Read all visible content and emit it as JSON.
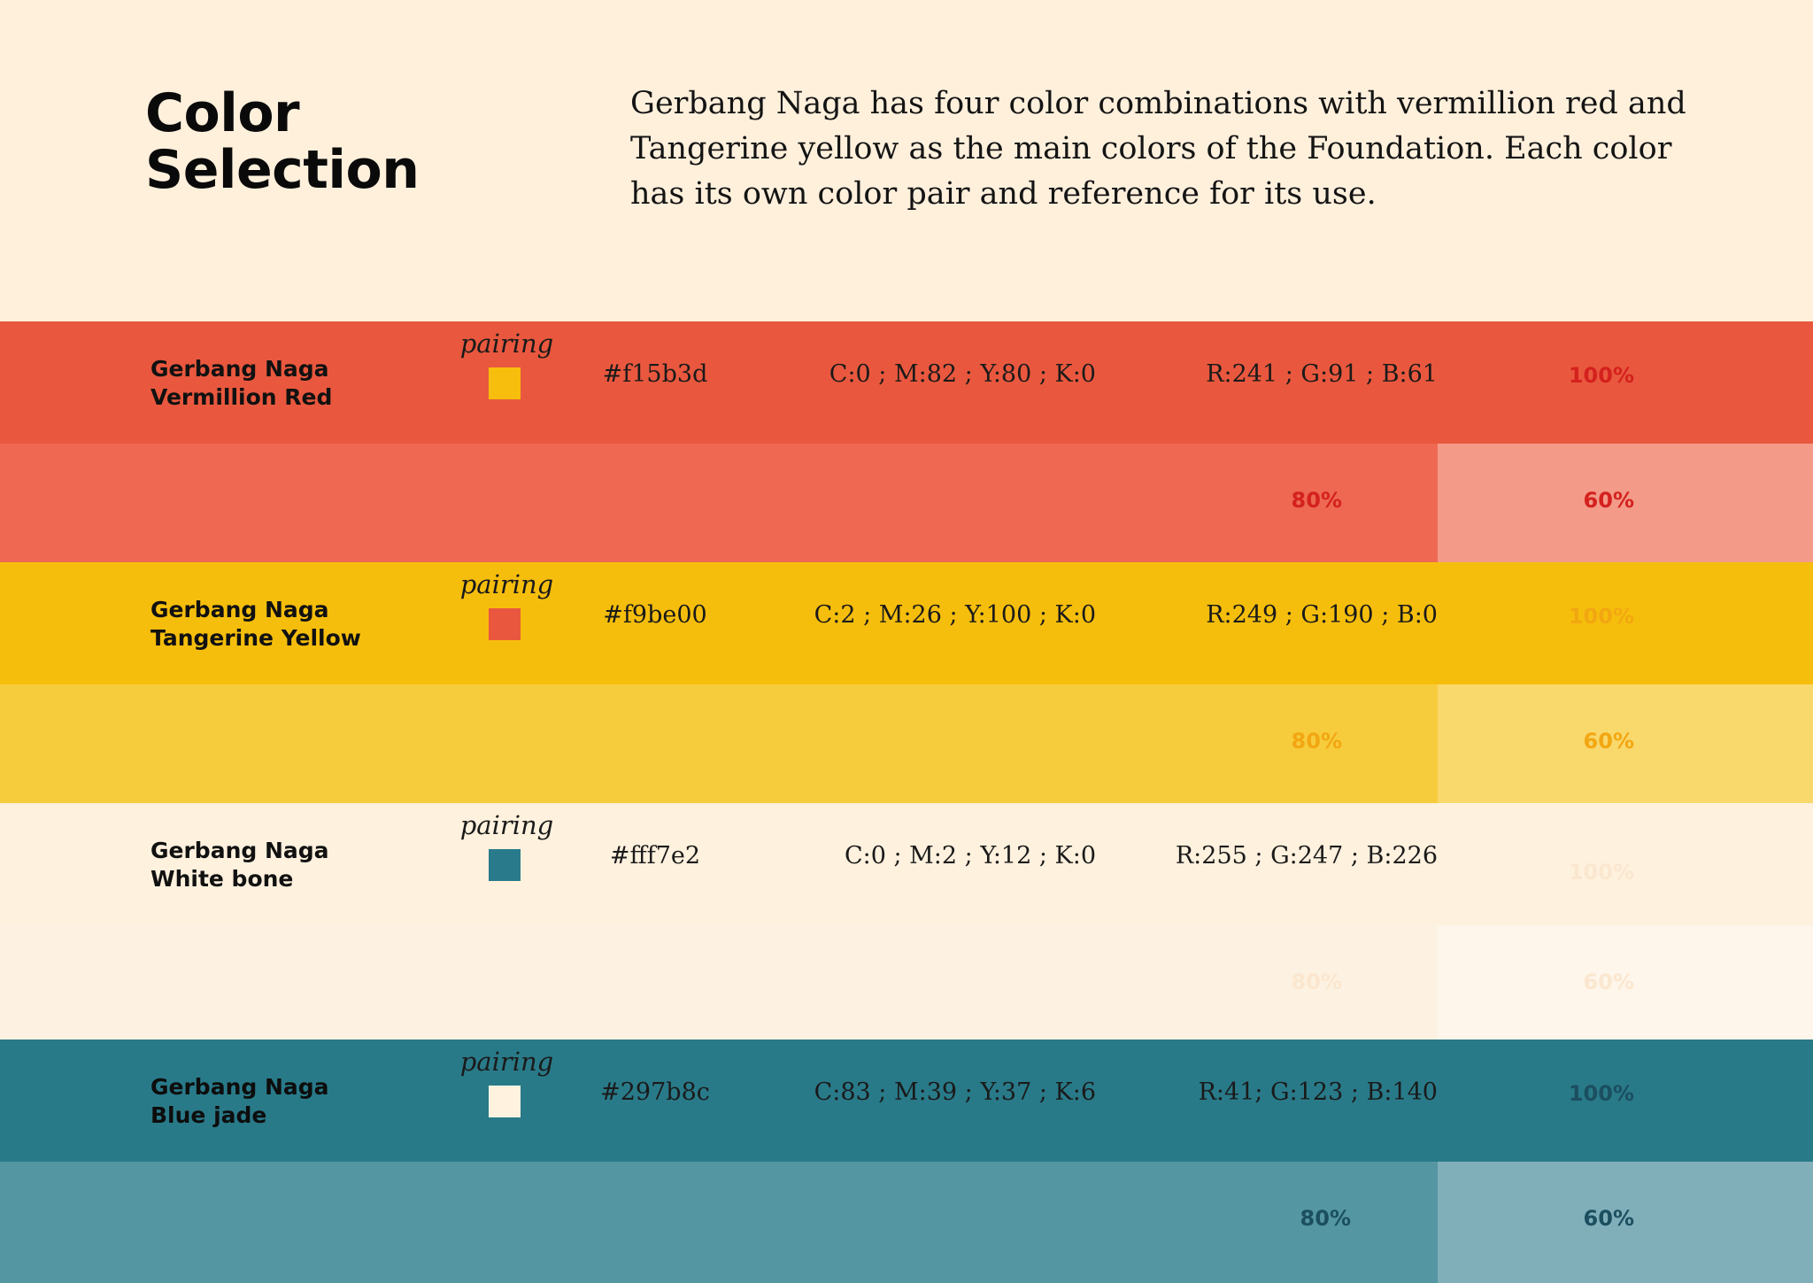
{
  "header": {
    "title_line1": "Color",
    "title_line2": "Selection",
    "description": "Gerbang Naga has four color combinations with vermillion red and Tangerine yellow as the main colors of the Foundation. Each color has its own color pair and reference for its use."
  },
  "colors": [
    {
      "name_line1": "Gerbang Naga",
      "name_line2": "Vermillion Red",
      "pairing_label": "pairing",
      "hex": "#f15b3d",
      "cmyk": "C:0 ; M:82 ; Y:80 ; K:0",
      "rgb": "R:241 ; G:91 ; B:61",
      "tint100": "100%",
      "tint80": "80%",
      "tint60": "60%",
      "base_color": "#e9583e",
      "color80": "#ee6852",
      "color60": "#f39a89",
      "pair_color": "#f7be0d",
      "label_color": "#d4211e",
      "name_color": "#111111"
    },
    {
      "name_line1": "Gerbang Naga",
      "name_line2": "Tangerine Yellow",
      "pairing_label": "pairing",
      "hex": "#f9be00",
      "cmyk": "C:2 ; M:26 ; Y:100 ; K:0",
      "rgb": "R:249 ; G:190 ; B:0",
      "tint100": "100%",
      "tint80": "80%",
      "tint60": "60%",
      "base_color": "#f6be0c",
      "color80": "#f7cc3c",
      "color60": "#f9d86c",
      "pair_color": "#e9583e",
      "label_color": "#f2a712",
      "name_color": "#111111"
    },
    {
      "name_line1": "Gerbang Naga",
      "name_line2": "White bone",
      "pairing_label": "pairing",
      "hex": "#fff7e2",
      "cmyk": "C:0 ; M:2 ; Y:12 ; K:0",
      "rgb": "R:255 ; G:247 ; B:226",
      "tint100": "100%",
      "tint80": "80%",
      "tint60": "60%",
      "base_color": "#fef1de",
      "color80": "#fdf2e1",
      "color60": "#fef6ea",
      "pair_color": "#297b8c",
      "label_color": "#fbe6cf",
      "name_color": "#111111"
    },
    {
      "name_line1": "Gerbang Naga",
      "name_line2": "Blue jade",
      "pairing_label": "pairing",
      "hex": "#297b8c",
      "cmyk": "C:83 ; M:39 ; Y:37 ; K:6",
      "rgb": "R:41; G:123 ; B:140",
      "tint100": "100%",
      "tint80": "80%",
      "tint60": "60%",
      "base_color": "#297a89",
      "color80": "#5496a2",
      "color60": "#80afb9",
      "pair_color": "#fff3e0",
      "label_color": "#1b4f60",
      "name_color": "#0d0d0d"
    }
  ]
}
